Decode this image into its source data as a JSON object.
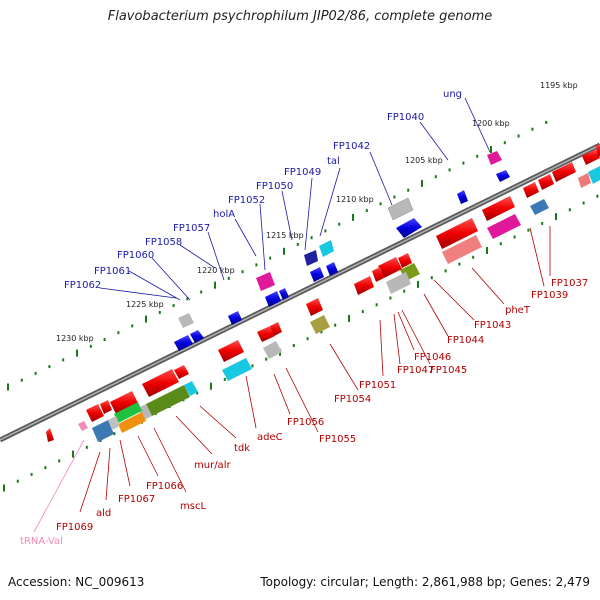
{
  "title": "Flavobacterium psychrophilum JIP02/86, complete genome",
  "accession": "Accession: NC_009613",
  "summary": "Topology: circular; Length: 2,861,988 bp; Genes: 2,479",
  "kbp_marks": [
    "1195 kbp",
    "1200 kbp",
    "1205 kbp",
    "1210 kbp",
    "1215 kbp",
    "1220 kbp",
    "1225 kbp",
    "1230 kbp"
  ],
  "forward_labels": [
    "ung",
    "FP1040",
    "FP1042",
    "tal",
    "FP1049",
    "FP1050",
    "FP1052",
    "holA",
    "FP1057",
    "FP1058",
    "FP1060",
    "FP1061",
    "FP1062"
  ],
  "reverse_labels": [
    "FP1037",
    "FP1039",
    "pheT",
    "FP1043",
    "FP1044",
    "FP1045",
    "FP1046",
    "FP1047",
    "FP1051",
    "FP1054",
    "FP1055",
    "FP1056",
    "adeC",
    "tdk",
    "mur/alr",
    "mscL",
    "FP1066",
    "FP1067",
    "ald",
    "FP1069"
  ],
  "rna_labels": [
    "tRNA-Val"
  ],
  "colors": {
    "forward_gene": "#0000dd",
    "reverse_gene": "#ee0000",
    "forward_label": "#1a1aa8",
    "reverse_label": "#b40000",
    "trna_label": "#f08cb8",
    "backbone": "#777777",
    "tick": "#1a7a1a"
  }
}
